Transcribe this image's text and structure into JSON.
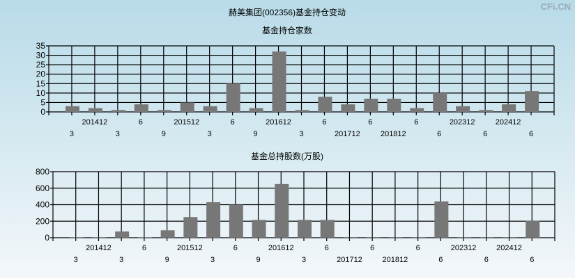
{
  "watermark": "CFi.CN",
  "title": "赫美集团(002356)基金持仓变动",
  "chart_data": [
    {
      "type": "bar",
      "title": "基金持仓家数",
      "categories": [
        "3",
        "201412",
        "3",
        "6",
        "9",
        "201512",
        "3",
        "6",
        "9",
        "201612",
        "3",
        "6",
        "201712",
        "6",
        "201812",
        "6",
        "6",
        "202312",
        "6",
        "202412",
        "6"
      ],
      "values": [
        3,
        2,
        1,
        4,
        1,
        5,
        3,
        15,
        2,
        32,
        1,
        8,
        4,
        7,
        7,
        2,
        10,
        3,
        1,
        4,
        11
      ],
      "ylim": [
        0,
        35
      ],
      "yticks": [
        0,
        5,
        10,
        15,
        20,
        25,
        30,
        35
      ],
      "grid": true,
      "color": "#e8202a"
    },
    {
      "type": "bar",
      "title": "基金总持股数(万股)",
      "categories": [
        "3",
        "201412",
        "3",
        "6",
        "9",
        "201512",
        "3",
        "6",
        "9",
        "201612",
        "3",
        "6",
        "201712",
        "6",
        "201812",
        "6",
        "6",
        "202312",
        "6",
        "202412",
        "6"
      ],
      "values": [
        5,
        5,
        75,
        5,
        90,
        250,
        430,
        400,
        215,
        650,
        215,
        215,
        3,
        3,
        3,
        3,
        440,
        3,
        3,
        3,
        205
      ],
      "ylim": [
        0,
        800
      ],
      "yticks": [
        0,
        200,
        400,
        600,
        800
      ],
      "grid": true,
      "color": "#2a2ae8"
    }
  ]
}
